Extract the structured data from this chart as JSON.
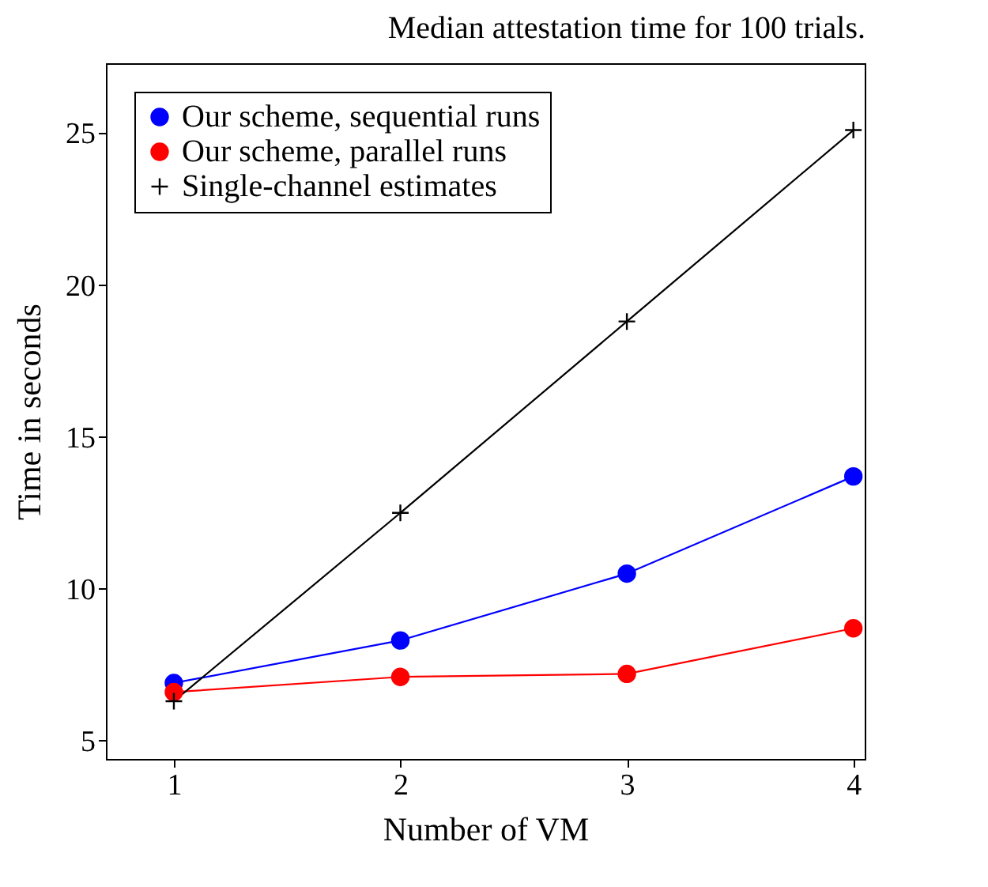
{
  "chart_data": {
    "type": "line",
    "title": "Median attestation time for 100 trials.",
    "xlabel": "Number of VM",
    "ylabel": "Time in seconds",
    "x": [
      1,
      2,
      3,
      4
    ],
    "series": [
      {
        "name": "Our scheme, sequential runs",
        "color": "#0000ff",
        "marker": "circle",
        "values": [
          6.9,
          8.3,
          10.5,
          13.7
        ]
      },
      {
        "name": "Our scheme, parallel runs",
        "color": "#ff0000",
        "marker": "circle",
        "values": [
          6.6,
          7.1,
          7.2,
          8.7
        ]
      },
      {
        "name": "Single-channel estimates",
        "color": "#000000",
        "marker": "cross",
        "values": [
          6.3,
          12.5,
          18.8,
          25.1
        ]
      }
    ],
    "xlim": [
      0.7,
      4.05
    ],
    "ylim": [
      4.4,
      27.3
    ],
    "xticks": [
      1,
      2,
      3,
      4
    ],
    "yticks": [
      5,
      10,
      15,
      20,
      25
    ],
    "grid": false,
    "legend": "top left"
  }
}
